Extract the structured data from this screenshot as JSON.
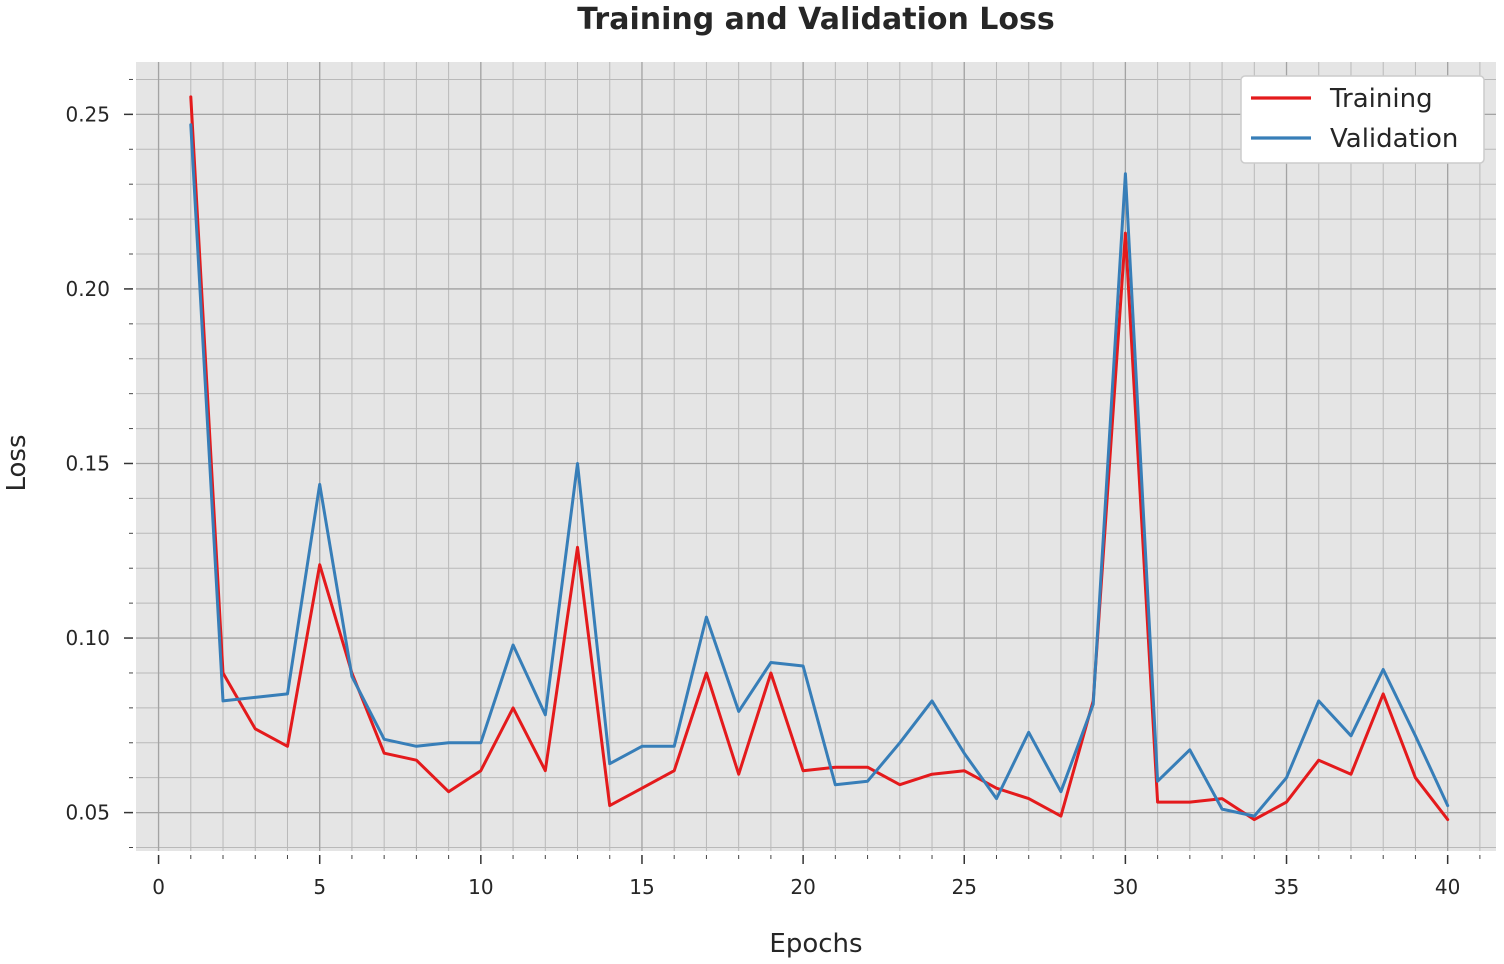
{
  "chart_data": {
    "type": "line",
    "title": "Training and Validation Loss",
    "xlabel": "Epochs",
    "ylabel": "Loss",
    "xlim": [
      -0.7,
      41.5
    ],
    "ylim": [
      0.039,
      0.265
    ],
    "xticks": [
      0,
      5,
      10,
      15,
      20,
      25,
      30,
      35,
      40
    ],
    "xtick_labels": [
      "0",
      "5",
      "10",
      "15",
      "20",
      "25",
      "30",
      "35",
      "40"
    ],
    "yticks": [
      0.05,
      0.1,
      0.15,
      0.2,
      0.25
    ],
    "ytick_labels": [
      "0.05",
      "0.10",
      "0.15",
      "0.20",
      "0.25"
    ],
    "x_minor_step": 1,
    "y_minor_step": 0.01,
    "grid": true,
    "background": "#e5e5e5",
    "legend_position": "top-right",
    "x": [
      1,
      2,
      3,
      4,
      5,
      6,
      7,
      8,
      9,
      10,
      11,
      12,
      13,
      14,
      15,
      16,
      17,
      18,
      19,
      20,
      21,
      22,
      23,
      24,
      25,
      26,
      27,
      28,
      29,
      30,
      31,
      32,
      33,
      34,
      35,
      36,
      37,
      38,
      39,
      40
    ],
    "series": [
      {
        "name": "Training",
        "color": "#e41a1c",
        "values": [
          0.255,
          0.09,
          0.074,
          0.069,
          0.121,
          0.09,
          0.067,
          0.065,
          0.056,
          0.062,
          0.08,
          0.062,
          0.126,
          0.052,
          0.057,
          0.062,
          0.09,
          0.061,
          0.09,
          0.062,
          0.063,
          0.063,
          0.058,
          0.061,
          0.062,
          0.057,
          0.054,
          0.049,
          0.082,
          0.216,
          0.053,
          0.053,
          0.054,
          0.048,
          0.053,
          0.065,
          0.061,
          0.084,
          0.06,
          0.048
        ]
      },
      {
        "name": "Validation",
        "color": "#377eb8",
        "values": [
          0.247,
          0.082,
          0.083,
          0.084,
          0.144,
          0.089,
          0.071,
          0.069,
          0.07,
          0.07,
          0.098,
          0.078,
          0.15,
          0.064,
          0.069,
          0.069,
          0.106,
          0.079,
          0.093,
          0.092,
          0.058,
          0.059,
          0.07,
          0.082,
          0.067,
          0.054,
          0.073,
          0.056,
          0.081,
          0.233,
          0.059,
          0.068,
          0.051,
          0.049,
          0.06,
          0.082,
          0.072,
          0.091,
          0.072,
          0.052
        ]
      }
    ]
  }
}
